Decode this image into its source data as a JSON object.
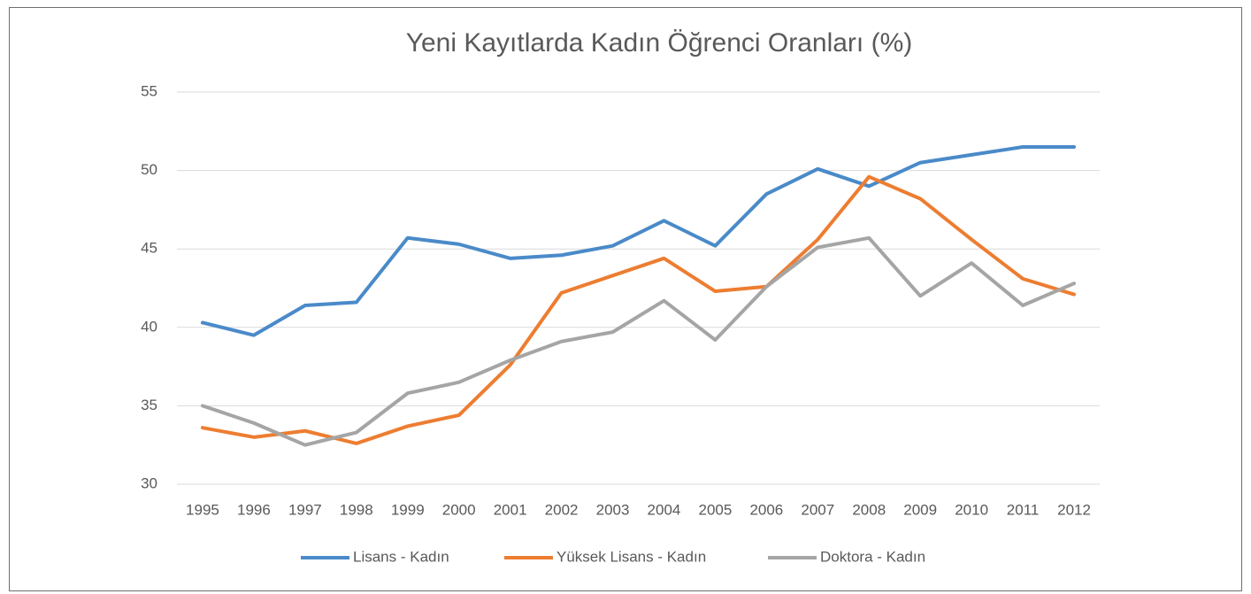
{
  "chart_data": {
    "type": "line",
    "title": "Yeni Kayıtlarda Kadın Öğrenci Oranları (%)",
    "categories": [
      "1995",
      "1996",
      "1997",
      "1998",
      "1999",
      "2000",
      "2001",
      "2002",
      "2003",
      "2004",
      "2005",
      "2006",
      "2007",
      "2008",
      "2009",
      "2010",
      "2011",
      "2012"
    ],
    "series": [
      {
        "name": "Lisans - Kadın",
        "color": "#4a8ac9",
        "values": [
          40.3,
          39.5,
          41.4,
          41.6,
          45.7,
          45.3,
          44.4,
          44.6,
          45.2,
          46.8,
          45.2,
          48.5,
          50.1,
          49.0,
          50.5,
          51.0,
          51.5,
          51.5
        ]
      },
      {
        "name": "Yüksek Lisans - Kadın",
        "color": "#ed7d31",
        "values": [
          33.6,
          33.0,
          33.4,
          32.6,
          33.7,
          34.4,
          37.6,
          42.2,
          43.3,
          44.4,
          42.3,
          42.6,
          45.6,
          49.6,
          48.2,
          45.6,
          43.1,
          42.1
        ]
      },
      {
        "name": "Doktora - Kadın",
        "color": "#a5a5a5",
        "values": [
          35.0,
          33.9,
          32.5,
          33.3,
          35.8,
          36.5,
          37.9,
          39.1,
          39.7,
          41.7,
          39.2,
          42.6,
          45.1,
          45.7,
          42.0,
          44.1,
          41.4,
          42.8
        ]
      }
    ],
    "ylim": [
      30,
      55
    ],
    "yticks": [
      30,
      35,
      40,
      45,
      50,
      55
    ],
    "grid": true,
    "legend": "bottom"
  }
}
